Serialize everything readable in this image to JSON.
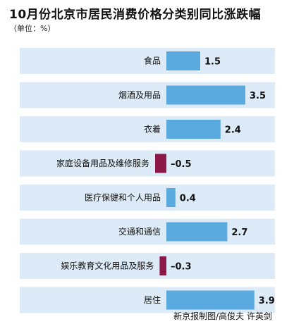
{
  "header": {
    "title": "10月份北京市居民消费价格分类别同比涨跌幅",
    "unit": "（单位：%）"
  },
  "footer": {
    "credit": "新京报制图/高俊夫 许英剑"
  },
  "colors": {
    "positive": "#5aa9df",
    "negative": "#8b1846",
    "row_bg": "#dcebf7"
  },
  "chart_data": {
    "type": "bar",
    "orientation": "horizontal",
    "title": "10月份北京市居民消费价格分类别同比涨跌幅",
    "unit": "%",
    "categories": [
      "食品",
      "烟酒及用品",
      "衣着",
      "家庭设备用品及维修服务",
      "医疗保健和个人用品",
      "交通和通信",
      "娱乐教育文化用品及服务",
      "居住"
    ],
    "values": [
      1.5,
      3.5,
      2.4,
      -0.5,
      0.4,
      2.7,
      -0.3,
      3.9
    ],
    "value_labels": [
      "1.5",
      "3.5",
      "2.4",
      "–0.5",
      "0.4",
      "2.7",
      "–0.3",
      "3.9"
    ],
    "xlim": [
      -0.5,
      3.9
    ],
    "grid": false,
    "legend": "none"
  }
}
